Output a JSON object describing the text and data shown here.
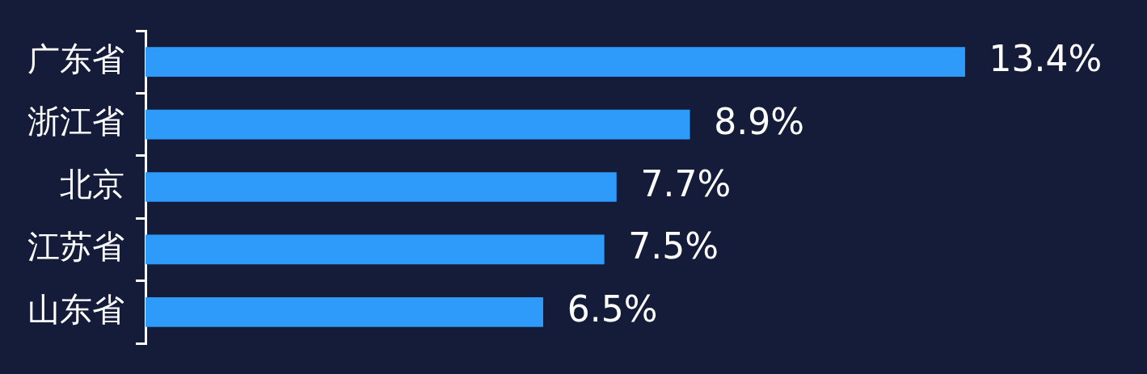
{
  "chart_data": {
    "type": "bar",
    "orientation": "horizontal",
    "categories": [
      "广东省",
      "浙江省",
      "北京",
      "江苏省",
      "山东省"
    ],
    "values": [
      13.4,
      8.9,
      7.7,
      7.5,
      6.5
    ],
    "value_labels": [
      "13.4%",
      "8.9%",
      "7.7%",
      "7.5%",
      "6.5%"
    ],
    "color": "#2e9bfb",
    "tick_labels": "y",
    "grid": false,
    "legend": false
  }
}
